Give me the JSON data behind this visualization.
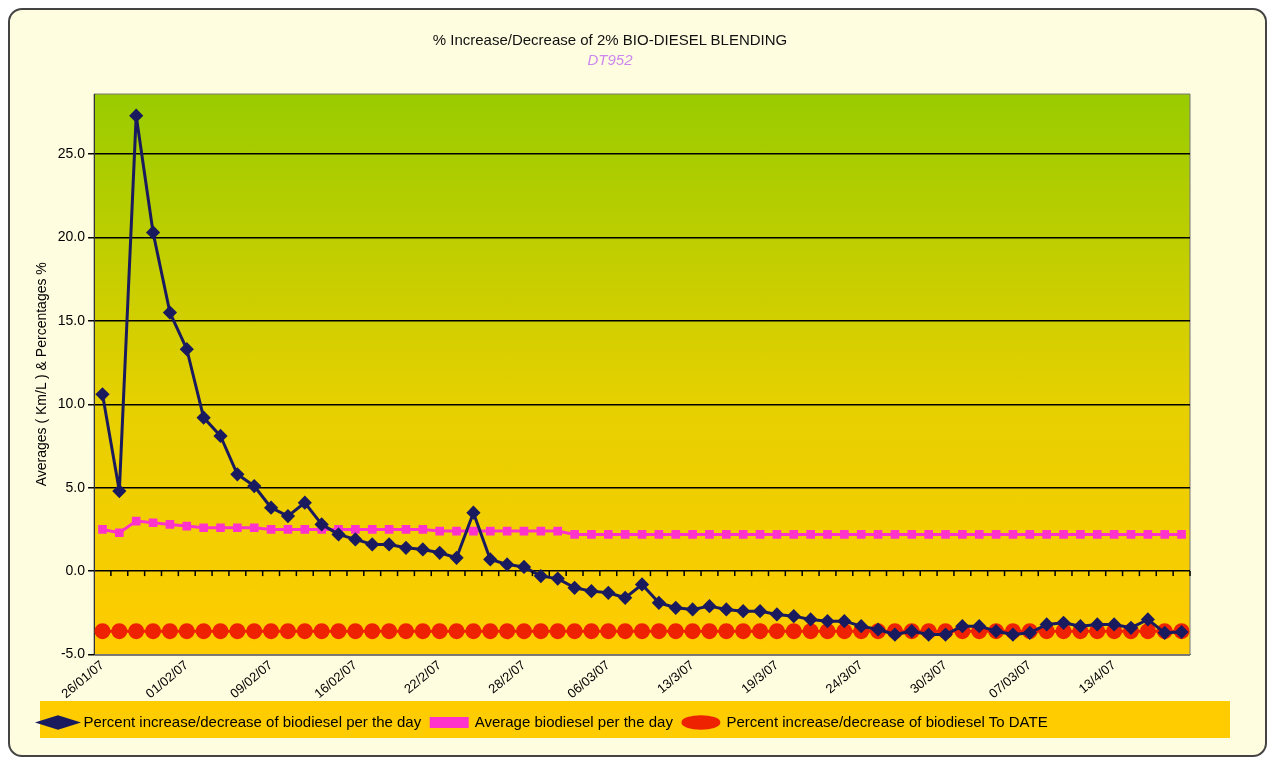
{
  "chart_data": {
    "type": "line",
    "title": "% Increase/Decrease of 2% BIO-DIESEL BLENDING",
    "subtitle": "DT952",
    "ylabel": "Averages ( Km/L ) & Percentages %",
    "categories": [
      "26/01/07",
      null,
      null,
      null,
      null,
      "01/02/07",
      null,
      null,
      null,
      null,
      "09/02/07",
      null,
      null,
      null,
      null,
      "16/02/07",
      null,
      null,
      null,
      null,
      "22/2/07",
      null,
      null,
      null,
      null,
      "28/2/07",
      null,
      null,
      null,
      null,
      "06/03/07",
      null,
      null,
      null,
      null,
      "13/3/07",
      null,
      null,
      null,
      null,
      "19/3/07",
      null,
      null,
      null,
      null,
      "24/3/07",
      null,
      null,
      null,
      null,
      "30/3/07",
      null,
      null,
      null,
      null,
      "07/03/07",
      null,
      null,
      null,
      null,
      "13/4/07",
      null,
      null,
      null,
      null
    ],
    "series": [
      {
        "name": "Percent increase/decrease of biodiesel per the day",
        "color": "#1a1a5e",
        "marker": "diamond",
        "values": [
          10.6,
          4.8,
          27.3,
          20.3,
          15.5,
          13.3,
          9.2,
          8.1,
          5.8,
          5.1,
          3.8,
          3.3,
          4.1,
          2.8,
          2.2,
          1.9,
          1.6,
          1.6,
          1.4,
          1.3,
          1.1,
          0.8,
          3.5,
          0.7,
          0.4,
          0.25,
          -0.3,
          -0.45,
          -1.0,
          -1.2,
          -1.3,
          -1.6,
          -0.8,
          -1.9,
          -2.2,
          -2.3,
          -2.1,
          -2.3,
          -2.4,
          -2.4,
          -2.6,
          -2.7,
          -2.9,
          -3.0,
          -3.0,
          -3.3,
          -3.5,
          -3.8,
          -3.6,
          -3.8,
          -3.8,
          -3.3,
          -3.3,
          -3.6,
          -3.8,
          -3.7,
          -3.2,
          -3.1,
          -3.3,
          -3.2,
          -3.2,
          -3.4,
          -2.9,
          -3.7,
          -3.65
        ]
      },
      {
        "name": "Average biodiesel per the day",
        "color": "#ff33cc",
        "marker": "square",
        "values": [
          2.5,
          2.3,
          3.0,
          2.9,
          2.8,
          2.7,
          2.6,
          2.6,
          2.6,
          2.6,
          2.5,
          2.5,
          2.5,
          2.5,
          2.5,
          2.5,
          2.5,
          2.5,
          2.5,
          2.5,
          2.4,
          2.4,
          2.4,
          2.4,
          2.4,
          2.4,
          2.4,
          2.4,
          2.2,
          2.2,
          2.2,
          2.2,
          2.2,
          2.2,
          2.2,
          2.2,
          2.2,
          2.2,
          2.2,
          2.2,
          2.2,
          2.2,
          2.2,
          2.2,
          2.2,
          2.2,
          2.2,
          2.2,
          2.2,
          2.2,
          2.2,
          2.2,
          2.2,
          2.2,
          2.2,
          2.2,
          2.2,
          2.2,
          2.2,
          2.2,
          2.2,
          2.2,
          2.2,
          2.2,
          2.2
        ]
      },
      {
        "name": "Percent increase/decrease of biodiesel To DATE",
        "color": "#ee2200",
        "marker": "circle",
        "values": [
          -3.6,
          -3.6,
          -3.6,
          -3.6,
          -3.6,
          -3.6,
          -3.6,
          -3.6,
          -3.6,
          -3.6,
          -3.6,
          -3.6,
          -3.6,
          -3.6,
          -3.6,
          -3.6,
          -3.6,
          -3.6,
          -3.6,
          -3.6,
          -3.6,
          -3.6,
          -3.6,
          -3.6,
          -3.6,
          -3.6,
          -3.6,
          -3.6,
          -3.6,
          -3.6,
          -3.6,
          -3.6,
          -3.6,
          -3.6,
          -3.6,
          -3.6,
          -3.6,
          -3.6,
          -3.6,
          -3.6,
          -3.6,
          -3.6,
          -3.6,
          -3.6,
          -3.6,
          -3.6,
          -3.6,
          -3.6,
          -3.6,
          -3.6,
          -3.6,
          -3.6,
          -3.6,
          -3.6,
          -3.6,
          -3.6,
          -3.6,
          -3.6,
          -3.6,
          -3.6,
          -3.6,
          -3.6,
          -3.6,
          -3.6,
          -3.6
        ]
      }
    ],
    "ylim": [
      -5,
      28.6
    ],
    "yticks": [
      {
        "value": -5,
        "label": "-5.0"
      },
      {
        "value": 0,
        "label": "0.0"
      },
      {
        "value": 5,
        "label": "5.0"
      },
      {
        "value": 10,
        "label": "10.0"
      },
      {
        "value": 15,
        "label": "15.0"
      },
      {
        "value": 20,
        "label": "20.0"
      },
      {
        "value": 25,
        "label": "25.0"
      }
    ],
    "grid": "y",
    "legend": "bottom"
  }
}
